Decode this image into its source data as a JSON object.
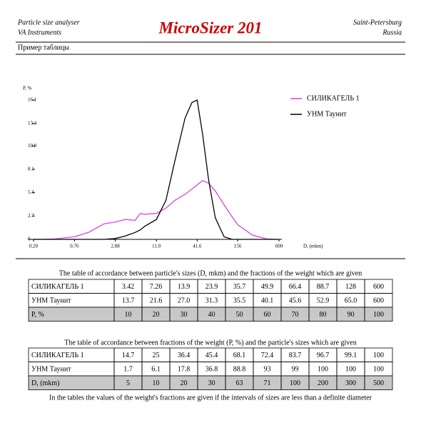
{
  "header": {
    "left_line1": "Particle size analyser",
    "left_line2": "VA Instruments",
    "logo": "MicroSizer 201",
    "right_line1": "Saint-Petersburg",
    "right_line2": "Russia",
    "subtitle": "Пример таблицы"
  },
  "chart_data": {
    "type": "line",
    "y_label": "P, %",
    "x_label": "D, (mkm)",
    "x_scale": "log",
    "legend": "upper right",
    "x": [
      0.2,
      0.25,
      0.4,
      0.76,
      1.2,
      2.0,
      2.88,
      4,
      5.5,
      6.5,
      7.5,
      11,
      15,
      20,
      28,
      35,
      41.6,
      50,
      60,
      75,
      100,
      130,
      156,
      250,
      400,
      600
    ],
    "series": [
      {
        "name": "СИЛИКАГЕЛЬ 1",
        "color": "#e040e0",
        "values": [
          0,
          0,
          0.05,
          0.3,
          0.8,
          1.8,
          2.0,
          2.3,
          2.2,
          3.0,
          2.9,
          3.0,
          3.6,
          4.5,
          5.2,
          5.8,
          6.3,
          6.8,
          6.5,
          5.6,
          4.0,
          2.6,
          1.7,
          0.5,
          0.05,
          0
        ]
      },
      {
        "name": "УНМ Таунит",
        "color": "#000000",
        "values": [
          0,
          0,
          0,
          0,
          0,
          0,
          0.1,
          0.4,
          0.8,
          1.1,
          1.5,
          2.3,
          4.5,
          9,
          14,
          15.8,
          16.1,
          12,
          7,
          2.5,
          0.3,
          0,
          0,
          0,
          0,
          0
        ]
      }
    ],
    "xlim": [
      0.2,
      600
    ],
    "ylim": [
      0,
      16.1
    ],
    "xticks": [
      {
        "value": 0.2,
        "label": "0.20"
      },
      0.76,
      2.88,
      {
        "value": 11,
        "label": "11.0"
      },
      41.6,
      156,
      600
    ],
    "yticks": [
      0,
      2.7,
      5.4,
      8.1,
      10.8,
      13.4,
      16.1
    ]
  },
  "table1": {
    "caption": "The table of accordance between particle's sizes (D, mkm) and the fractions of the weight which are given",
    "rows": [
      [
        "СИЛИКАГЕЛЬ 1",
        "3.42",
        "7.26",
        "13.9",
        "23.9",
        "35.7",
        "49.9",
        "66.4",
        "88.7",
        "128",
        "600"
      ],
      [
        "УНМ Таунит",
        "13.7",
        "21.6",
        "27.0",
        "31.3",
        "35.5",
        "40.1",
        "45.6",
        "52.9",
        "65.0",
        "600"
      ],
      [
        "P, %",
        "10",
        "20",
        "30",
        "40",
        "50",
        "60",
        "70",
        "80",
        "90",
        "100"
      ]
    ]
  },
  "table2": {
    "caption": "The table of accordance between fractions of the weight (P, %) and the particle's sizes which are given",
    "rows": [
      [
        "СИЛИКАГЕЛЬ 1",
        "14.7",
        "25",
        "36.4",
        "45.4",
        "68.1",
        "72.4",
        "83.7",
        "96.7",
        "99.1",
        "100"
      ],
      [
        "УНМ Таунит",
        "1.7",
        "6.1",
        "17.8",
        "36.8",
        "88.8",
        "93",
        "99",
        "100",
        "100",
        "100"
      ],
      [
        "D, (mkm)",
        "5",
        "10",
        "20",
        "30",
        "63",
        "71",
        "100",
        "200",
        "300",
        "500"
      ]
    ]
  },
  "footnote": "In the tables the values of the weight's fractions are given if the intervals of sizes are less than a definite diameter"
}
